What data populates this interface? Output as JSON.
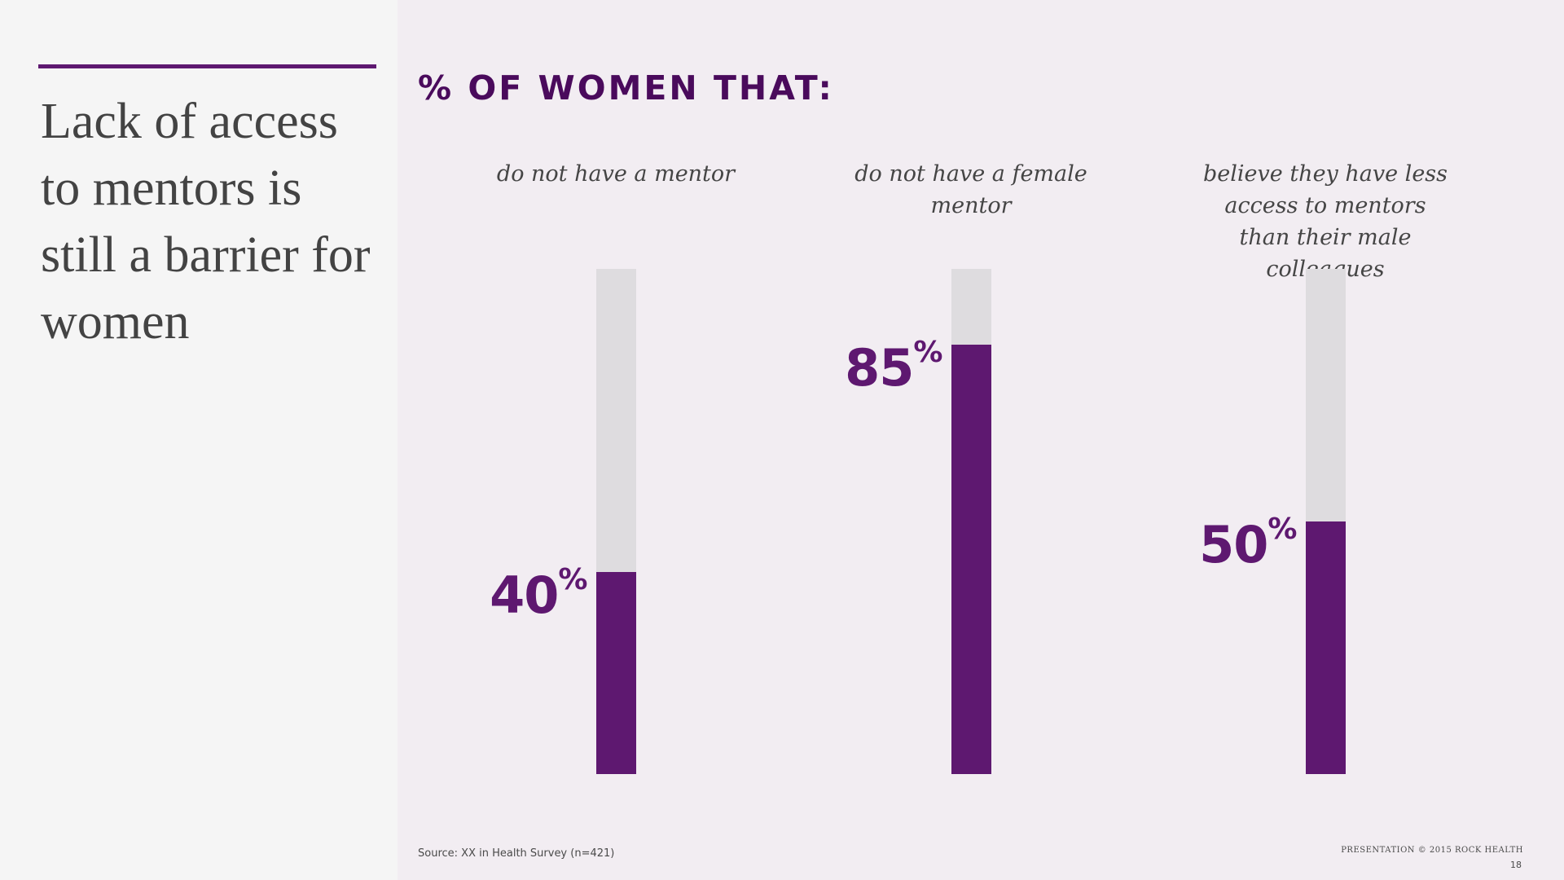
{
  "slide": {
    "headline": "Lack of access to mentors is still a barrier for women",
    "source": "Source: XX in Health Survey (n=421)",
    "copyright": "PRESENTATION © 2015 ROCK HEALTH",
    "page_number": "18"
  },
  "colors": {
    "accent": "#5e1870",
    "title": "#4a0a5c",
    "track": "#dedcdf",
    "panel": "#f5f5f5",
    "background": "#f2edf2"
  },
  "chart_data": {
    "type": "bar",
    "title": "% OF WOMEN THAT:",
    "categories": [
      "do not have a mentor",
      "do not have a female mentor",
      "believe they have less access to mentors than their male colleagues"
    ],
    "values": [
      40,
      85,
      50
    ],
    "value_unit": "%",
    "ylim": [
      0,
      100
    ],
    "orientation": "vertical",
    "grid": false,
    "legend": "none",
    "data_labels": [
      "40",
      "85",
      "50"
    ]
  }
}
